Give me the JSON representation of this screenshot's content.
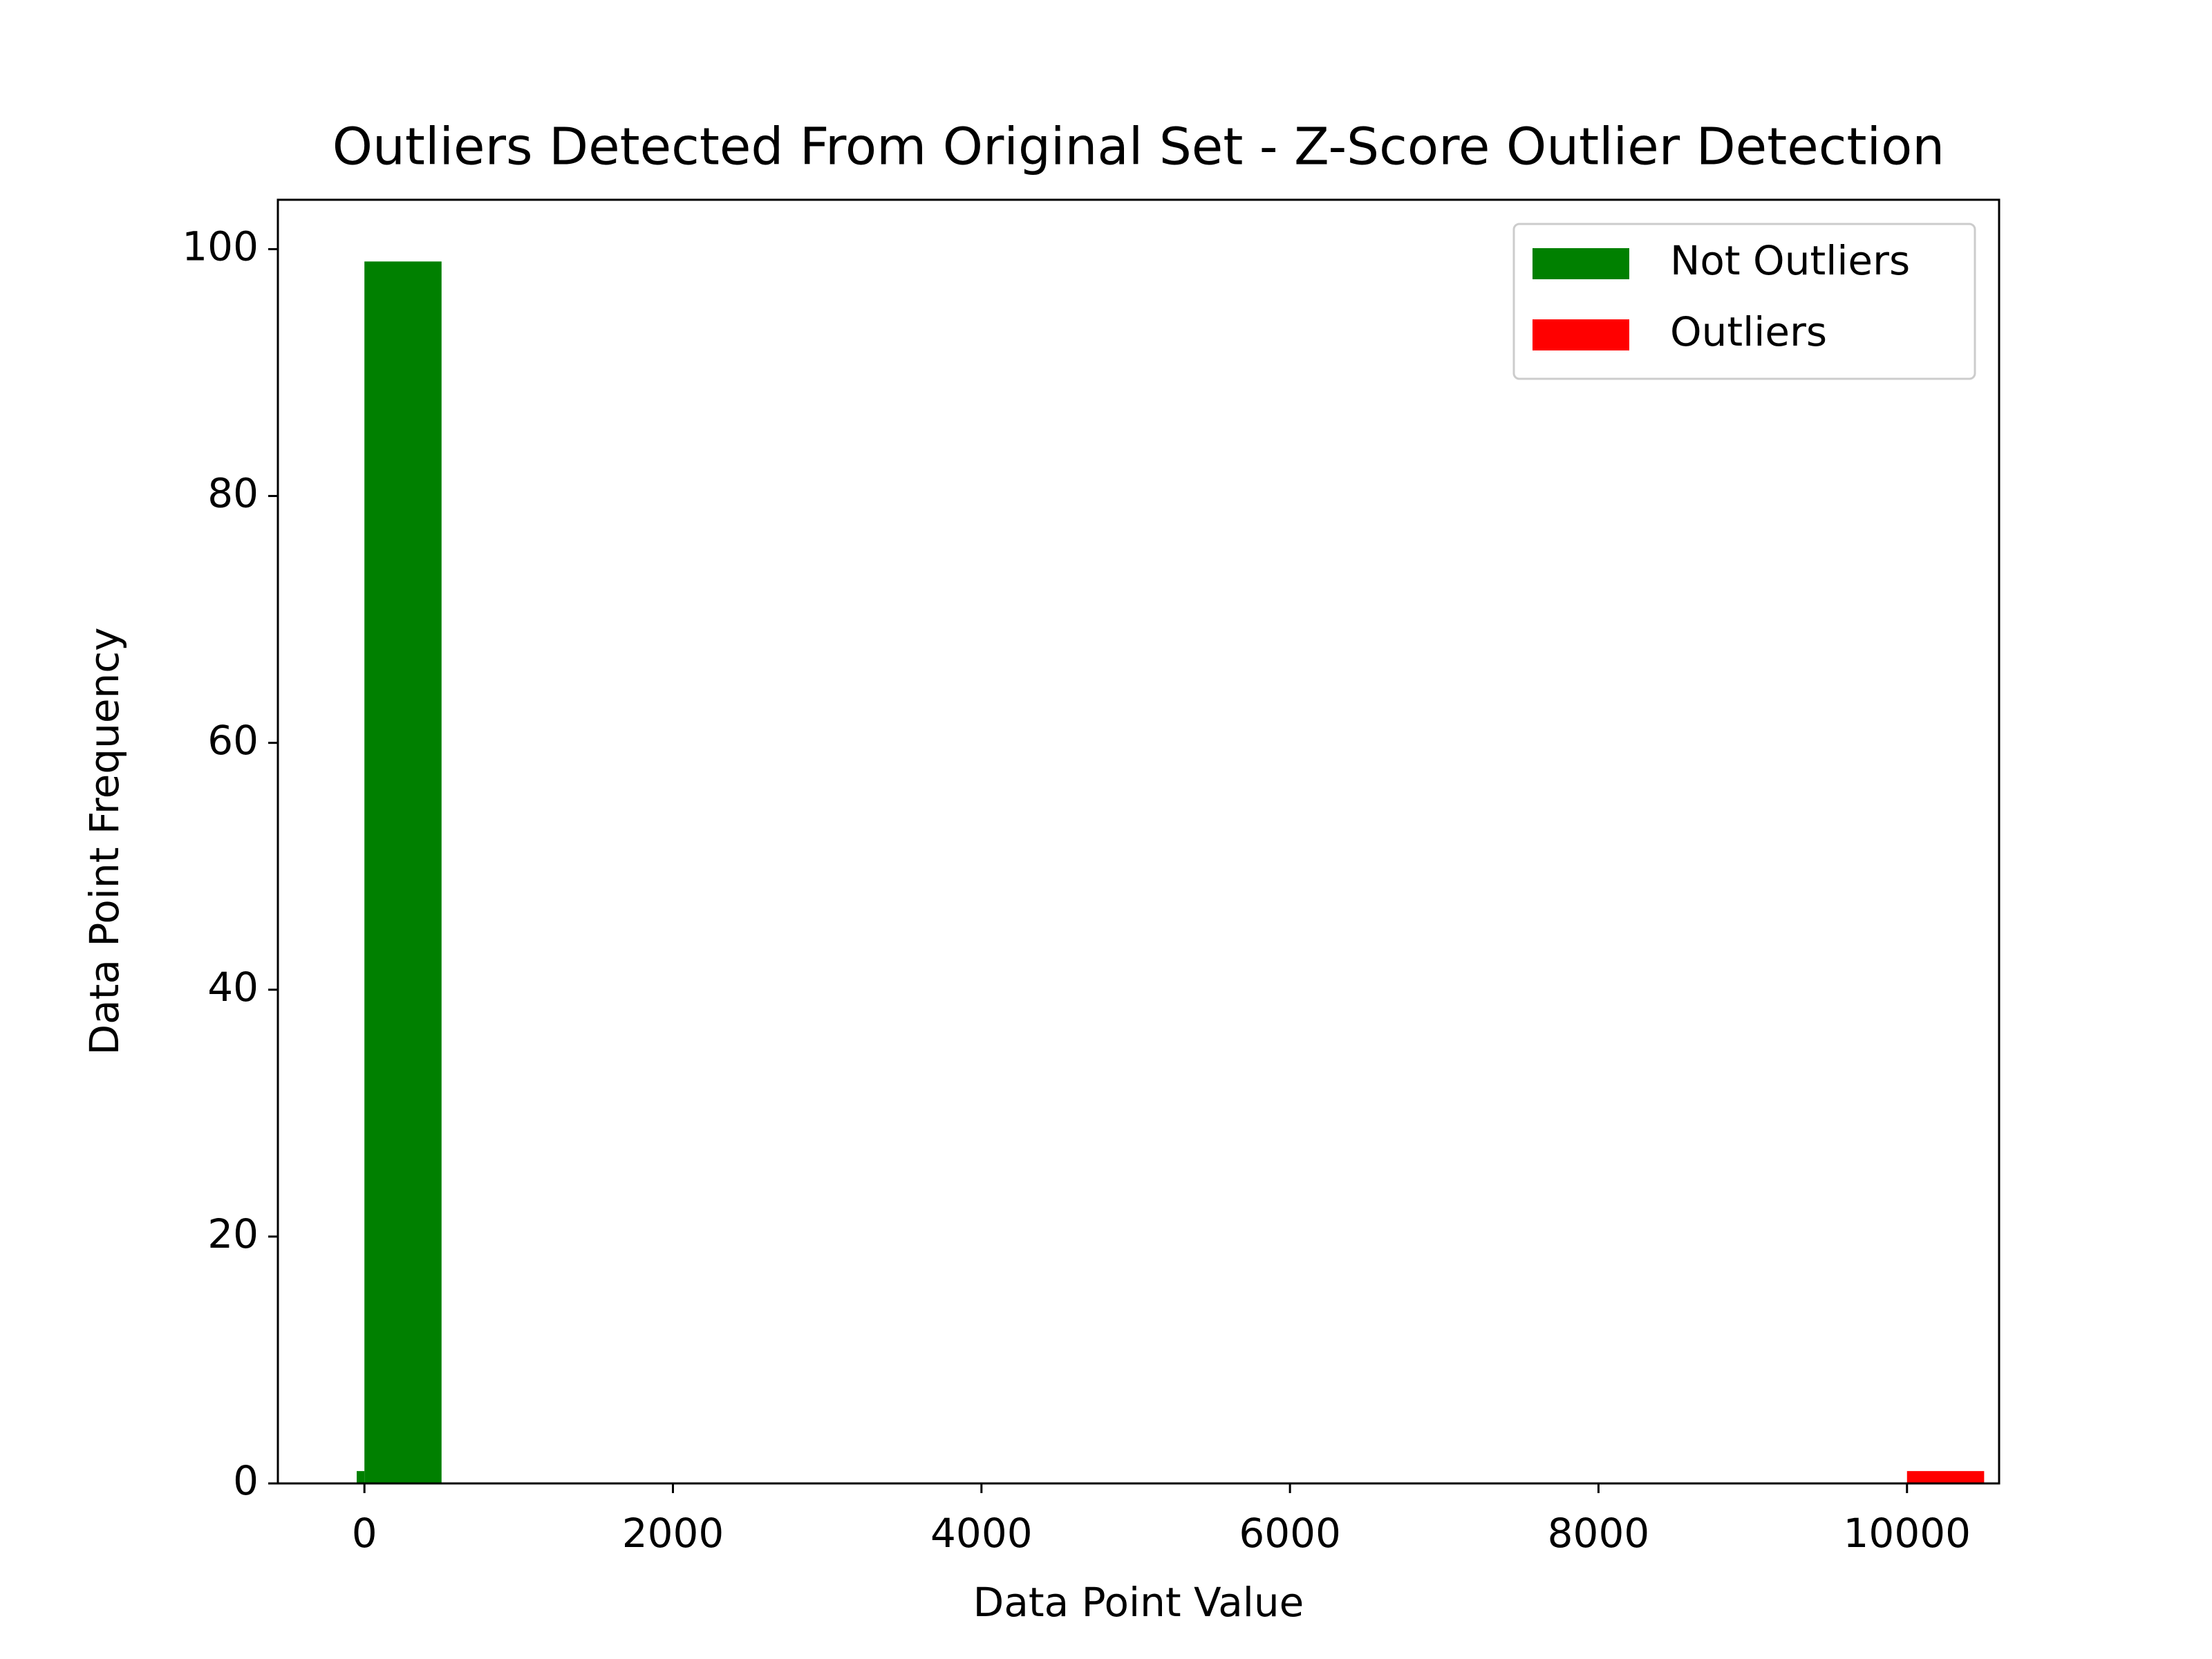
{
  "chart_data": {
    "type": "histogram",
    "title": "Outliers Detected From Original Set - Z-Score Outlier Detection",
    "xlabel": "Data Point Value",
    "ylabel": "Data Point Frequency",
    "series": [
      {
        "name": "Not Outliers",
        "color": "#008000",
        "bins": [
          -50,
          0,
          500
        ],
        "counts": [
          1,
          99
        ]
      },
      {
        "name": "Outliers",
        "color": "#ff0000",
        "bins": [
          10000,
          10500
        ],
        "counts": [
          1
        ]
      }
    ],
    "xlim": [
      -561,
      10597
    ],
    "ylim": [
      0,
      104
    ],
    "xticks": [
      0,
      2000,
      4000,
      6000,
      8000,
      10000
    ],
    "yticks": [
      0,
      20,
      40,
      60,
      80,
      100
    ],
    "legend": "upper right"
  }
}
